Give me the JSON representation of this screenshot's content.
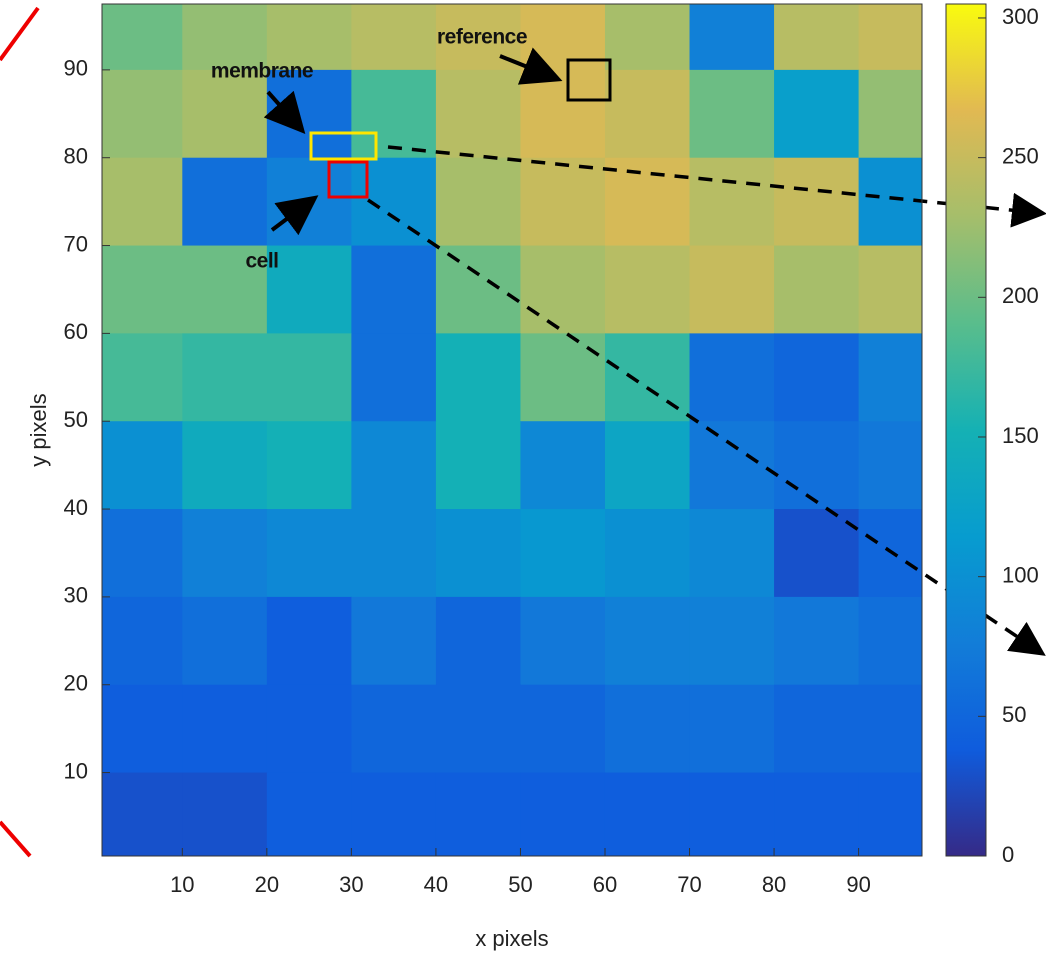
{
  "chart_data": {
    "type": "heatmap",
    "x_label": "x pixels",
    "y_label": "y pixels",
    "x": [
      5,
      15,
      25,
      35,
      45,
      55,
      65,
      75,
      85,
      95
    ],
    "y": [
      95,
      85,
      75,
      65,
      55,
      45,
      35,
      25,
      15,
      5
    ],
    "z": [
      [
        200,
        220,
        230,
        240,
        250,
        260,
        230,
        80,
        240,
        250
      ],
      [
        220,
        230,
        60,
        180,
        240,
        260,
        250,
        200,
        120,
        220
      ],
      [
        230,
        60,
        80,
        100,
        230,
        250,
        260,
        240,
        250,
        100
      ],
      [
        200,
        200,
        140,
        60,
        200,
        230,
        240,
        250,
        230,
        240
      ],
      [
        180,
        170,
        170,
        60,
        150,
        200,
        170,
        60,
        50,
        80
      ],
      [
        100,
        140,
        150,
        90,
        150,
        90,
        130,
        70,
        60,
        70
      ],
      [
        60,
        80,
        90,
        90,
        100,
        110,
        100,
        90,
        30,
        50
      ],
      [
        50,
        60,
        40,
        70,
        50,
        70,
        80,
        80,
        70,
        60
      ],
      [
        40,
        40,
        40,
        50,
        50,
        50,
        60,
        60,
        50,
        50
      ],
      [
        30,
        30,
        40,
        40,
        40,
        40,
        40,
        40,
        40,
        40
      ]
    ],
    "xlim": [
      0.5,
      97.5
    ],
    "ylim": [
      0.5,
      97.5
    ],
    "xticks": [
      10,
      20,
      30,
      40,
      50,
      60,
      70,
      80,
      90
    ],
    "yticks": [
      10,
      20,
      30,
      40,
      50,
      60,
      70,
      80,
      90
    ],
    "colormap": "parula",
    "clim": [
      0,
      305
    ],
    "cticks": [
      0,
      50,
      100,
      150,
      200,
      250,
      300
    ],
    "annotations": [
      "reference",
      "membrane",
      "cell"
    ]
  }
}
